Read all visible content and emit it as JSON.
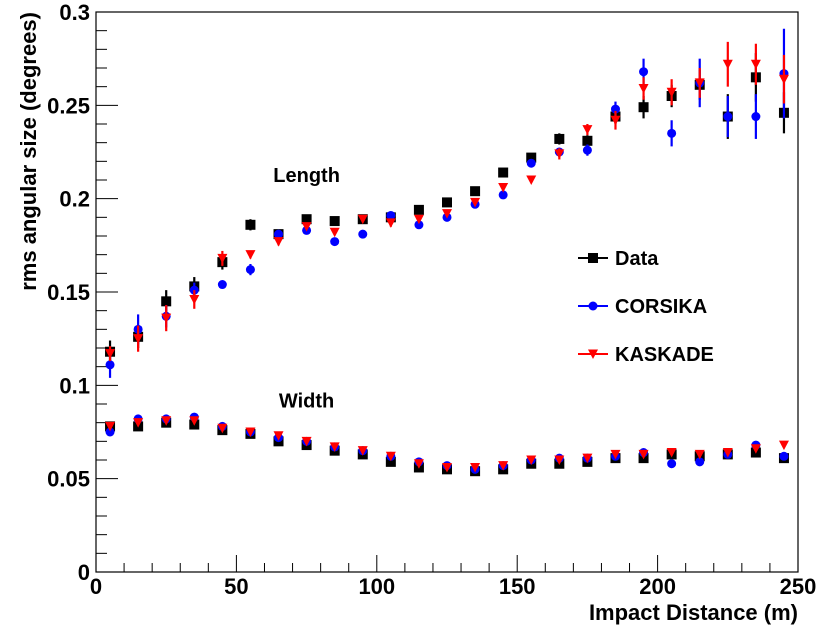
{
  "chart_data": {
    "type": "scatter",
    "xlabel": "Impact Distance (m)",
    "ylabel": "rms angular size (degrees)",
    "xlim": [
      0,
      250
    ],
    "ylim": [
      0,
      0.3
    ],
    "x_ticks": [
      0,
      50,
      100,
      150,
      200,
      250
    ],
    "y_ticks": [
      0,
      0.05,
      0.1,
      0.15,
      0.2,
      0.25,
      0.3
    ],
    "x_tick_labels": [
      "0",
      "50",
      "100",
      "150",
      "200",
      "250"
    ],
    "y_tick_labels": [
      "0",
      "0.05",
      "0.1",
      "0.15",
      "0.2",
      "0.25",
      "0.3"
    ],
    "legend_position": "right-middle",
    "grid": false,
    "annotations": [
      {
        "text": "Length",
        "x": 75,
        "y": 0.209
      },
      {
        "text": "Width",
        "x": 75,
        "y": 0.088
      }
    ],
    "x": [
      5,
      15,
      25,
      35,
      45,
      55,
      65,
      75,
      85,
      95,
      105,
      115,
      125,
      135,
      145,
      155,
      165,
      175,
      185,
      195,
      205,
      215,
      225,
      235,
      245
    ],
    "series": [
      {
        "name": "Data",
        "group": "length",
        "marker": "square",
        "color": "#000000",
        "values": [
          0.118,
          0.126,
          0.145,
          0.153,
          0.166,
          0.186,
          0.181,
          0.189,
          0.188,
          0.189,
          0.19,
          0.194,
          0.198,
          0.204,
          0.214,
          0.222,
          0.232,
          0.231,
          0.244,
          0.249,
          0.255,
          0.261,
          0.244,
          0.265,
          0.246
        ],
        "errors": [
          0.006,
          0.006,
          0.006,
          0.005,
          0.004,
          0.003,
          0.002,
          0.002,
          0.002,
          0.002,
          0.002,
          0.002,
          0.002,
          0.002,
          0.002,
          0.002,
          0.003,
          0.003,
          0.004,
          0.006,
          0.006,
          0.008,
          0.012,
          0.013,
          0.011
        ]
      },
      {
        "name": "CORSIKA",
        "group": "length",
        "marker": "circle",
        "color": "#0000ff",
        "values": [
          0.111,
          0.13,
          0.137,
          0.151,
          0.154,
          0.162,
          0.181,
          0.183,
          0.177,
          0.181,
          0.191,
          0.186,
          0.19,
          0.197,
          0.202,
          0.219,
          0.225,
          0.226,
          0.248,
          0.268,
          0.235,
          0.262,
          0.244,
          0.244,
          0.267
        ],
        "errors": [
          0.007,
          0.008,
          0.006,
          0.004,
          0.002,
          0.003,
          0.002,
          0.002,
          0.001,
          0.001,
          0.001,
          0.001,
          0.001,
          0.001,
          0.001,
          0.002,
          0.002,
          0.003,
          0.004,
          0.007,
          0.007,
          0.013,
          0.011,
          0.012,
          0.024
        ]
      },
      {
        "name": "KASKADE",
        "group": "length",
        "marker": "triangle-down",
        "color": "#ff0000",
        "values": [
          0.117,
          0.125,
          0.136,
          0.146,
          0.168,
          0.17,
          0.177,
          0.185,
          0.182,
          0.189,
          0.187,
          0.189,
          0.192,
          0.198,
          0.206,
          0.21,
          0.224,
          0.237,
          0.242,
          0.259,
          0.257,
          0.262,
          0.272,
          0.272,
          0.264
        ],
        "errors": [
          0.004,
          0.007,
          0.007,
          0.005,
          0.004,
          0.002,
          0.002,
          0.001,
          0.001,
          0.001,
          0.002,
          0.001,
          0.001,
          0.001,
          0.001,
          0.001,
          0.003,
          0.003,
          0.005,
          0.006,
          0.007,
          0.008,
          0.012,
          0.011,
          0.013
        ]
      },
      {
        "name": "Data",
        "group": "width",
        "marker": "square",
        "color": "#000000",
        "values": [
          0.078,
          0.078,
          0.08,
          0.079,
          0.076,
          0.074,
          0.07,
          0.068,
          0.065,
          0.063,
          0.059,
          0.056,
          0.055,
          0.054,
          0.055,
          0.058,
          0.058,
          0.059,
          0.061,
          0.061,
          0.063,
          0.062,
          0.063,
          0.064,
          0.061
        ],
        "errors": [
          0.002,
          0.002,
          0.001,
          0.001,
          0.001,
          0.001,
          0.001,
          0.001,
          0.001,
          0.001,
          0.001,
          0.001,
          0.001,
          0.001,
          0.001,
          0.001,
          0.001,
          0.001,
          0.001,
          0.001,
          0.001,
          0.001,
          0.001,
          0.001,
          0.001
        ]
      },
      {
        "name": "CORSIKA",
        "group": "width",
        "marker": "circle",
        "color": "#0000ff",
        "values": [
          0.075,
          0.082,
          0.082,
          0.083,
          0.078,
          0.075,
          0.072,
          0.07,
          0.067,
          0.065,
          0.062,
          0.059,
          0.057,
          0.055,
          0.057,
          0.06,
          0.061,
          0.061,
          0.062,
          0.064,
          0.058,
          0.059,
          0.063,
          0.068,
          0.062
        ],
        "errors": [
          0.002,
          0.002,
          0.001,
          0.001,
          0.001,
          0.001,
          0.001,
          0.001,
          0.001,
          0.001,
          0.001,
          0.001,
          0.001,
          0.001,
          0.001,
          0.001,
          0.001,
          0.001,
          0.001,
          0.001,
          0.001,
          0.001,
          0.001,
          0.001,
          0.001
        ]
      },
      {
        "name": "KASKADE",
        "group": "width",
        "marker": "triangle-down",
        "color": "#ff0000",
        "values": [
          0.078,
          0.08,
          0.081,
          0.081,
          0.077,
          0.075,
          0.073,
          0.07,
          0.067,
          0.065,
          0.062,
          0.058,
          0.056,
          0.056,
          0.057,
          0.06,
          0.06,
          0.061,
          0.063,
          0.063,
          0.064,
          0.063,
          0.064,
          0.066,
          0.068
        ],
        "errors": [
          0.001,
          0.001,
          0.001,
          0.001,
          0.001,
          0.001,
          0.001,
          0.001,
          0.001,
          0.001,
          0.001,
          0.001,
          0.001,
          0.001,
          0.001,
          0.001,
          0.001,
          0.001,
          0.001,
          0.001,
          0.001,
          0.001,
          0.001,
          0.001,
          0.001
        ]
      }
    ],
    "legend": [
      {
        "name": "Data",
        "marker": "square",
        "color": "#000000"
      },
      {
        "name": "CORSIKA",
        "marker": "circle",
        "color": "#0000ff"
      },
      {
        "name": "KASKADE",
        "marker": "triangle-down",
        "color": "#ff0000"
      }
    ]
  }
}
